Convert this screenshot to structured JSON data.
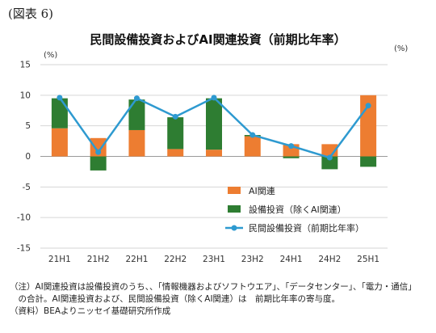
{
  "figure_label": "(図表 6)",
  "chart_data": {
    "type": "bar",
    "title": "民間設備投資およびAI関連投資（前期比年率）",
    "unit_left": "(%)",
    "unit_right": "(%)",
    "categories": [
      "21H1",
      "21H2",
      "22H1",
      "22H2",
      "23H1",
      "23H2",
      "24H1",
      "24H2",
      "25H1"
    ],
    "yticks": [
      "15",
      "10",
      "5",
      "0",
      "-5",
      "-10",
      "-15"
    ],
    "ylim": [
      -15,
      15
    ],
    "stacked": true,
    "series": [
      {
        "name": "AI関連",
        "kind": "bar",
        "color": "#ED7D31",
        "values": [
          4.6,
          3.0,
          4.3,
          1.2,
          1.1,
          3.3,
          2.0,
          2.0,
          10.0
        ]
      },
      {
        "name": "設備投資（除くAI関連）",
        "kind": "bar",
        "color": "#2E7D32",
        "values": [
          4.9,
          -2.3,
          5.0,
          5.2,
          8.4,
          0.2,
          -0.3,
          -2.1,
          -1.7
        ]
      },
      {
        "name": "民間設備投資（前期比年率）",
        "kind": "line",
        "color": "#2E9AD0",
        "values": [
          9.6,
          0.7,
          9.5,
          6.5,
          9.6,
          3.5,
          1.7,
          -0.2,
          8.3
        ]
      }
    ],
    "legend_position": "right"
  },
  "notes": [
    "（注）AI関連投資は設備投資のうち、、「情報機器およびソフトウエア」、「データセンター」、「電力・通信」",
    "　の合計。AI関連投資および、民間設備投資（除くAI関連）は　前期比年率の寄与度。",
    "（資料）BEAよりニッセイ基礎研究所作成"
  ]
}
